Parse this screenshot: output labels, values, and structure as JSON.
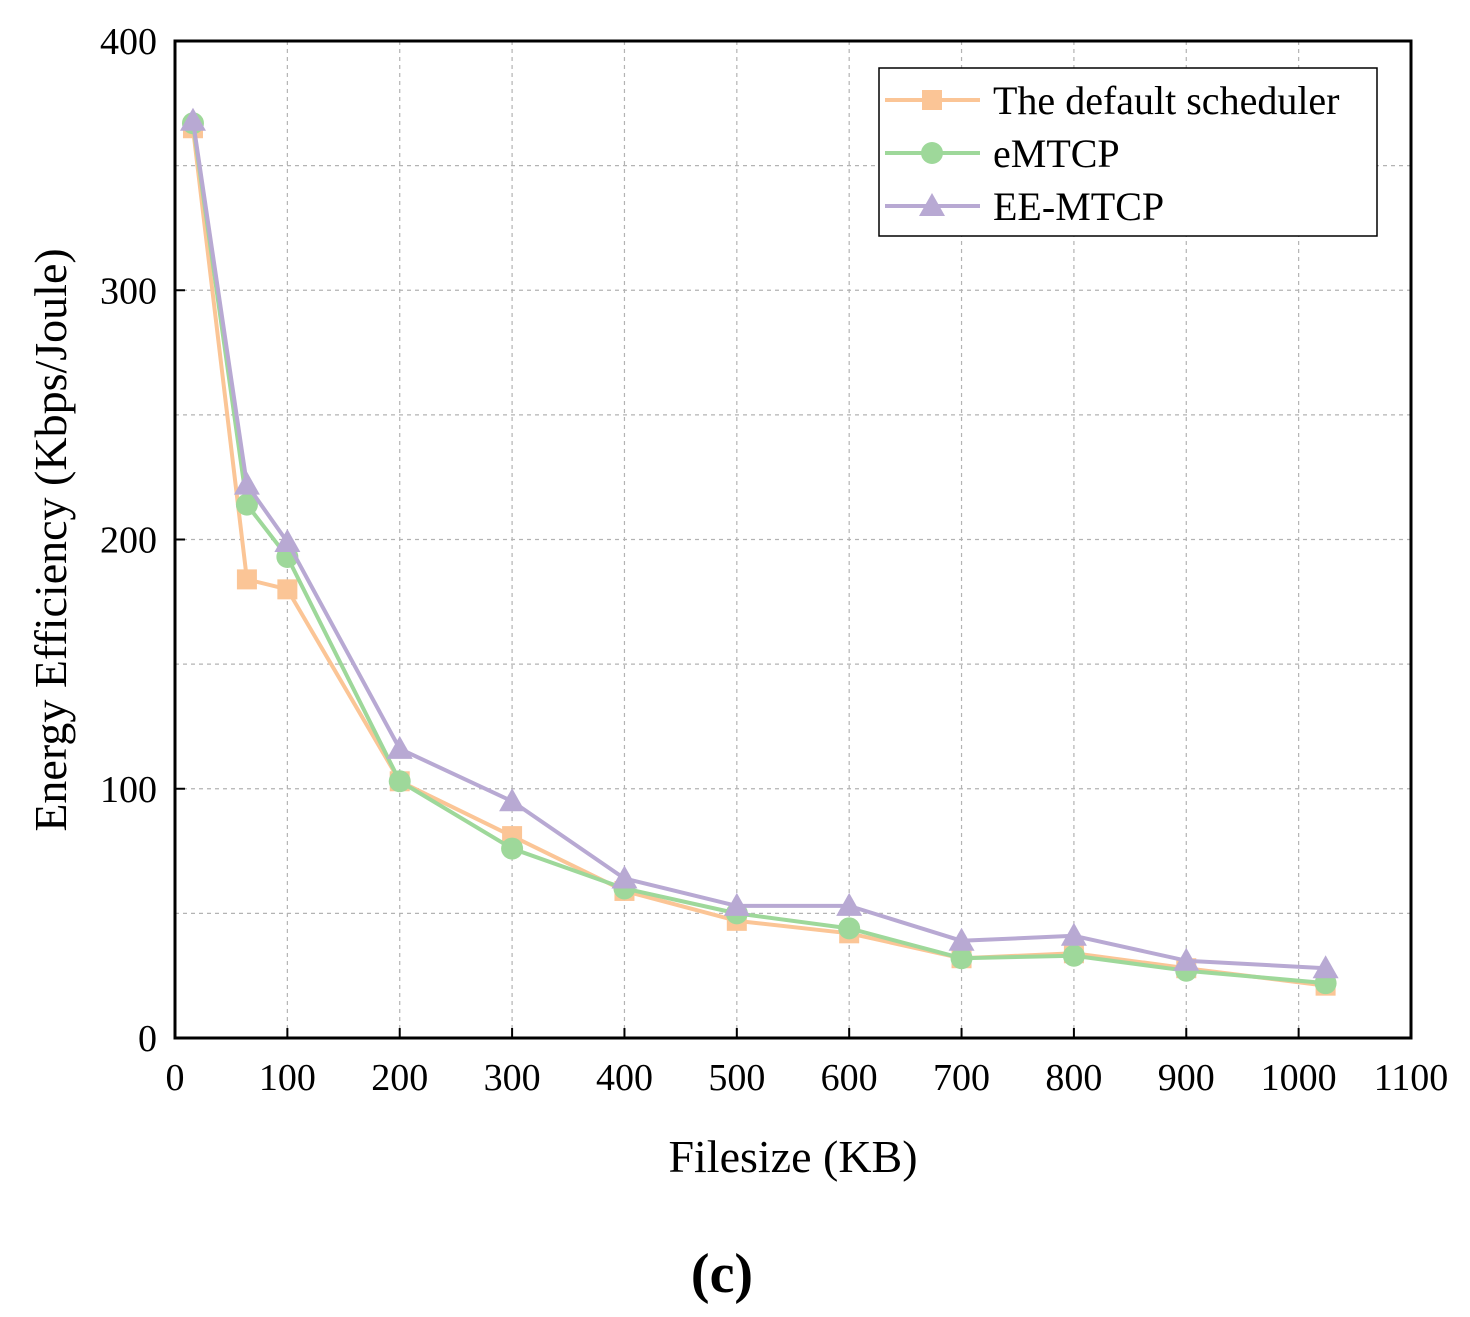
{
  "chart_data": {
    "type": "line",
    "title": "",
    "xlabel": "Filesize (KB)",
    "ylabel": "Energy Efficiency (Kbps/Joule)",
    "xlim": [
      0,
      1100
    ],
    "ylim": [
      0,
      400
    ],
    "xticks": [
      0,
      100,
      200,
      300,
      400,
      500,
      600,
      700,
      800,
      900,
      1000,
      1100
    ],
    "yticks": [
      0,
      100,
      200,
      300,
      400
    ],
    "grid": true,
    "legend_position": "top-right",
    "caption": "(c)",
    "x": [
      16,
      64,
      100,
      200,
      300,
      400,
      500,
      600,
      700,
      800,
      900,
      1024
    ],
    "series": [
      {
        "name": "The default scheduler",
        "color": "#fbc596",
        "marker": "square",
        "values": [
          365,
          184,
          180,
          103,
          81,
          59,
          47,
          42,
          32,
          34,
          28,
          21
        ]
      },
      {
        "name": "eMTCP",
        "color": "#9ed89a",
        "marker": "circle",
        "values": [
          367,
          214,
          193,
          103,
          76,
          60,
          50,
          44,
          32,
          33,
          27,
          22
        ]
      },
      {
        "name": "EE-MTCP",
        "color": "#b8a9d3",
        "marker": "triangle",
        "values": [
          368,
          222,
          199,
          116,
          95,
          64,
          53,
          53,
          39,
          41,
          31,
          28
        ]
      }
    ]
  }
}
